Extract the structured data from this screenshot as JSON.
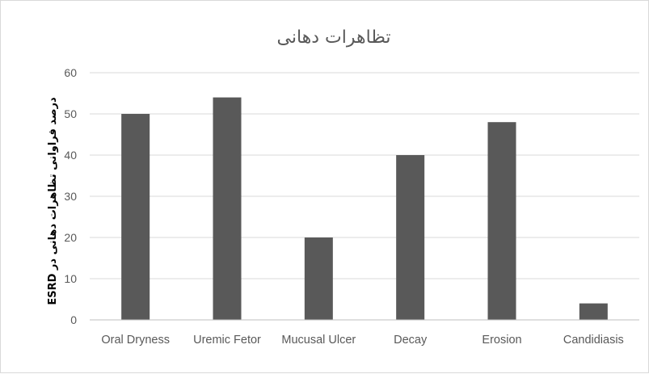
{
  "chart_data": {
    "type": "bar",
    "title": "تظاهرات دهانی",
    "ylabel": "درصد فراوانی تظاهرات دهانی در ESRD",
    "xlabel": "",
    "categories": [
      "Oral Dryness",
      "Uremic Fetor",
      "Mucusal Ulcer",
      "Decay",
      "Erosion",
      "Candidiasis"
    ],
    "values": [
      50,
      54,
      20,
      40,
      48,
      4
    ],
    "ylim": [
      0,
      60
    ],
    "yticks": [
      0,
      10,
      20,
      30,
      40,
      50,
      60
    ],
    "grid": true,
    "legend": "none",
    "bar_color": "#595959"
  }
}
